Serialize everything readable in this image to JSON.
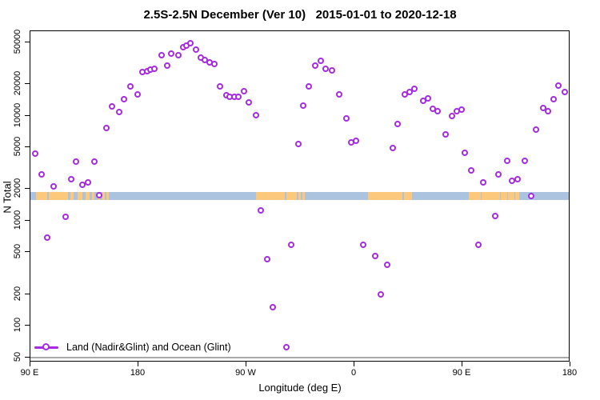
{
  "legend": {
    "label": "Land (Nadir&Glint) and Ocean (Glint)"
  },
  "colors": {
    "point": "#A62BE2",
    "band_ocean": "#ABC3DF",
    "band_land": "#FBC87C",
    "reference_line": "#a9a9a9"
  },
  "chart_data": {
    "type": "scatter",
    "title": "2.5S-2.5N December (Ver 10)   2015-01-01 to 2020-12-18",
    "xlabel": "Longitude (deg E)",
    "ylabel": "N Total",
    "y_scale": "log10",
    "ylim": [
      46,
      64000
    ],
    "x_axis_note": "longitude axis wraps eastward: 90E to 180 to 90W to 0 to 90E to 180 (450 deg span); x values below are continuous degrees east starting at 90",
    "x_range_deg": [
      90,
      540
    ],
    "x_ticks": [
      {
        "deg": 90,
        "label": "90 E"
      },
      {
        "deg": 180,
        "label": "180"
      },
      {
        "deg": 270,
        "label": "90 W"
      },
      {
        "deg": 360,
        "label": "0"
      },
      {
        "deg": 450,
        "label": "90 E"
      },
      {
        "deg": 540,
        "label": "180"
      }
    ],
    "y_ticks": [
      50,
      100,
      200,
      500,
      1000,
      2000,
      5000,
      10000,
      20000,
      50000
    ],
    "grid": "off",
    "legend_position": "bottom-left",
    "reference_line_y": 50,
    "band": {
      "description": "equatorial 2.5S-2.5N map strip: blue = ocean, orange = land",
      "n_range": [
        1570,
        1880
      ],
      "land_segments_deg": [
        [
          94.5,
          104
        ],
        [
          105,
          121
        ],
        [
          123,
          126
        ],
        [
          129,
          133
        ],
        [
          136,
          139
        ],
        [
          141,
          143
        ],
        [
          146,
          148
        ],
        [
          150,
          152
        ],
        [
          153.5,
          155
        ],
        [
          278,
          302
        ],
        [
          303,
          312
        ],
        [
          313,
          315
        ],
        [
          316.5,
          318.5
        ],
        [
          371.5,
          400
        ],
        [
          401,
          408
        ],
        [
          455,
          465
        ],
        [
          466,
          481
        ],
        [
          482,
          487
        ],
        [
          488,
          493
        ],
        [
          494,
          497
        ]
      ]
    },
    "series": [
      {
        "name": "Land (Nadir&Glint) and Ocean (Glint)",
        "x_deg": [
          94,
          99,
          104,
          109,
          119,
          124,
          128,
          133,
          138,
          143,
          147,
          153,
          158,
          164,
          168,
          173,
          179,
          183,
          187,
          190,
          193,
          199,
          204,
          207,
          213,
          217,
          220,
          223,
          228,
          232,
          235,
          239,
          243,
          248,
          253,
          256,
          260,
          263,
          268,
          272,
          278,
          282,
          287,
          292,
          303,
          307,
          313,
          317,
          322,
          327,
          332,
          336,
          341,
          347,
          353,
          357,
          361,
          367,
          377,
          382,
          387,
          392,
          396,
          402,
          406,
          410,
          417,
          421,
          425,
          429,
          436,
          441,
          445,
          449,
          452,
          457,
          463,
          467,
          477,
          480,
          487,
          491,
          496,
          502,
          507,
          511,
          517,
          521,
          526,
          530,
          535
        ],
        "n_total": [
          4350,
          2740,
          690,
          2140,
          1090,
          2480,
          3650,
          2180,
          2330,
          3650,
          1760,
          7700,
          12300,
          10900,
          14500,
          19000,
          15900,
          25900,
          26500,
          27400,
          27800,
          37800,
          30000,
          39300,
          37800,
          44900,
          46500,
          49000,
          43000,
          35600,
          33700,
          32000,
          31400,
          19000,
          15800,
          15100,
          15100,
          15200,
          17200,
          13500,
          10200,
          1250,
          430,
          150,
          62,
          590,
          5400,
          12400,
          19100,
          30000,
          33400,
          28100,
          27200,
          15850,
          9500,
          5550,
          5820,
          590,
          460,
          200,
          380,
          4960,
          8400,
          15900,
          16900,
          18000,
          14000,
          14600,
          11650,
          11000,
          6600,
          10000,
          11000,
          11400,
          4400,
          3000,
          590,
          2320,
          1100,
          2770,
          3700,
          2380,
          2470,
          3700,
          1730,
          7400,
          11900,
          11000,
          14500,
          19300,
          16800
        ]
      }
    ]
  }
}
